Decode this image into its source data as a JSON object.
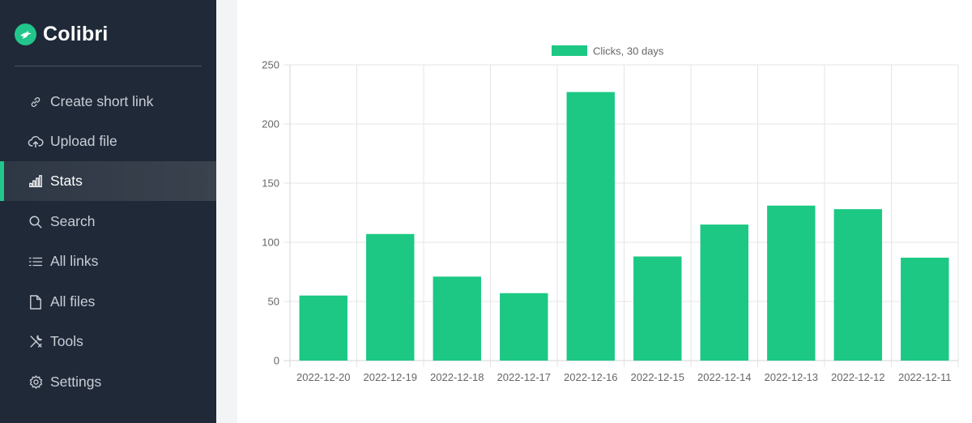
{
  "app": {
    "name": "Colibri"
  },
  "sidebar": {
    "items": [
      {
        "label": "Create short link",
        "icon": "link-icon",
        "active": false
      },
      {
        "label": "Upload file",
        "icon": "cloud-upload-icon",
        "active": false
      },
      {
        "label": "Stats",
        "icon": "bar-chart-icon",
        "active": true
      },
      {
        "label": "Search",
        "icon": "search-icon",
        "active": false
      },
      {
        "label": "All links",
        "icon": "list-icon",
        "active": false
      },
      {
        "label": "All files",
        "icon": "file-icon",
        "active": false
      },
      {
        "label": "Tools",
        "icon": "tools-icon",
        "active": false
      },
      {
        "label": "Settings",
        "icon": "gear-icon",
        "active": false
      }
    ]
  },
  "colors": {
    "sidebar_bg": "#202938",
    "accent": "#22c58b",
    "bar": "#1cc884"
  },
  "chart_data": {
    "type": "bar",
    "categories": [
      "2022-12-20",
      "2022-12-19",
      "2022-12-18",
      "2022-12-17",
      "2022-12-16",
      "2022-12-15",
      "2022-12-14",
      "2022-12-13",
      "2022-12-12",
      "2022-12-11"
    ],
    "series": [
      {
        "name": "Clicks, 30 days",
        "values": [
          55,
          107,
          71,
          57,
          227,
          88,
          115,
          131,
          128,
          87
        ]
      }
    ],
    "yticks": [
      "0",
      "50",
      "100",
      "150",
      "200",
      "250"
    ],
    "ylim": [
      0,
      250
    ],
    "grid": true,
    "legend": "top-center"
  }
}
